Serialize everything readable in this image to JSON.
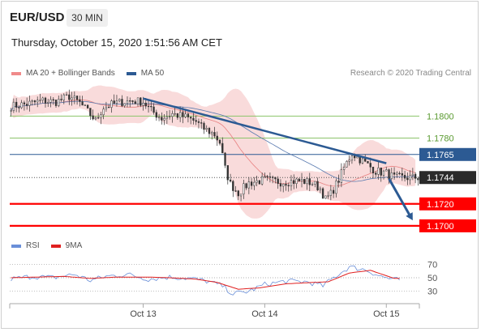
{
  "header": {
    "symbol": "EUR/USD",
    "timeframe": "30 MIN",
    "datetime": "Thursday, October 15, 2020 1:51:56 AM CET",
    "credit": "Research © 2020 Trading Central"
  },
  "legend": {
    "main": [
      {
        "label": "MA 20 + Bollinger Bands",
        "color": "#f08a8a"
      },
      {
        "label": "MA 50",
        "color": "#2c5a93"
      }
    ],
    "rsi": [
      {
        "label": "RSI",
        "color": "#6a8fd8"
      },
      {
        "label": "9MA",
        "color": "#e02020"
      }
    ]
  },
  "colors": {
    "up_candle": "#444444",
    "down_candle": "#444444",
    "support": "#ff0000",
    "pivot": "#2c5a93",
    "resistance": "#8cc46a",
    "trendline": "#2c5a93",
    "bollinger_fill": "#f8d5d5",
    "ma20": "#e88080",
    "ma50": "#5a7bb0",
    "rsi": "#6a8fd8",
    "rsi_ma": "#e02020",
    "current_price_bg": "#2a2a2a"
  },
  "chart_data": [
    {
      "type": "candlestick",
      "title": "EUR/USD 30 MIN",
      "ylim": [
        1.1694,
        1.1832
      ],
      "x_ticks": [
        "Oct 13",
        "Oct 14",
        "Oct 15"
      ],
      "x_tick_index": [
        50,
        96,
        142
      ],
      "n_bars": 155,
      "levels": [
        {
          "value": 1.18,
          "label": "1.1800",
          "kind": "resistance"
        },
        {
          "value": 1.178,
          "label": "1.1780",
          "kind": "resistance"
        },
        {
          "value": 1.1765,
          "label": "1.1765",
          "kind": "pivot"
        },
        {
          "value": 1.1744,
          "label": "1.1744",
          "kind": "current"
        },
        {
          "value": 1.172,
          "label": "1.1720",
          "kind": "support"
        },
        {
          "value": 1.17,
          "label": "1.1700",
          "kind": "support"
        }
      ],
      "trendline": [
        {
          "bar": 50,
          "price": 1.1816
        },
        {
          "bar": 142,
          "price": 1.1757
        }
      ],
      "forecast_arrow": [
        {
          "bar": 143,
          "price": 1.1743
        },
        {
          "bar": 152,
          "price": 1.1705
        }
      ],
      "price_path": [
        [
          0,
          1.1809
        ],
        [
          6,
          1.1811
        ],
        [
          12,
          1.1814
        ],
        [
          17,
          1.1813
        ],
        [
          22,
          1.1818
        ],
        [
          26,
          1.1812
        ],
        [
          29,
          1.1804
        ],
        [
          32,
          1.1796
        ],
        [
          35,
          1.1808
        ],
        [
          40,
          1.1812
        ],
        [
          45,
          1.1814
        ],
        [
          50,
          1.1813
        ],
        [
          53,
          1.1805
        ],
        [
          57,
          1.1798
        ],
        [
          61,
          1.1802
        ],
        [
          66,
          1.1799
        ],
        [
          70,
          1.1795
        ],
        [
          72,
          1.179
        ],
        [
          75,
          1.1786
        ],
        [
          77,
          1.1783
        ],
        [
          79,
          1.1776
        ],
        [
          81,
          1.1752
        ],
        [
          83,
          1.1738
        ],
        [
          86,
          1.173
        ],
        [
          90,
          1.1739
        ],
        [
          96,
          1.1742
        ],
        [
          102,
          1.174
        ],
        [
          110,
          1.1741
        ],
        [
          114,
          1.1739
        ],
        [
          117,
          1.1734
        ],
        [
          119,
          1.1724
        ],
        [
          121,
          1.1729
        ],
        [
          124,
          1.1742
        ],
        [
          126,
          1.1753
        ],
        [
          129,
          1.1766
        ],
        [
          133,
          1.1759
        ],
        [
          138,
          1.175
        ],
        [
          142,
          1.1748
        ],
        [
          145,
          1.1744
        ]
      ]
    },
    {
      "type": "line",
      "title": "RSI",
      "ylim": [
        20,
        80
      ],
      "levels": [
        70,
        50,
        30
      ],
      "series": [
        {
          "name": "RSI",
          "points": [
            [
              0,
              48
            ],
            [
              8,
              52
            ],
            [
              16,
              50
            ],
            [
              24,
              55
            ],
            [
              30,
              46
            ],
            [
              36,
              52
            ],
            [
              44,
              55
            ],
            [
              52,
              48
            ],
            [
              60,
              51
            ],
            [
              68,
              49
            ],
            [
              74,
              45
            ],
            [
              80,
              38
            ],
            [
              84,
              26
            ],
            [
              90,
              30
            ],
            [
              96,
              40
            ],
            [
              104,
              45
            ],
            [
              112,
              44
            ],
            [
              118,
              38
            ],
            [
              122,
              50
            ],
            [
              128,
              66
            ],
            [
              134,
              62
            ],
            [
              140,
              52
            ],
            [
              145,
              47
            ]
          ]
        },
        {
          "name": "9MA",
          "points": [
            [
              0,
              50
            ],
            [
              10,
              51
            ],
            [
              20,
              52
            ],
            [
              30,
              49
            ],
            [
              40,
              51
            ],
            [
              52,
              51
            ],
            [
              60,
              50
            ],
            [
              70,
              48
            ],
            [
              78,
              43
            ],
            [
              86,
              33
            ],
            [
              94,
              35
            ],
            [
              104,
              41
            ],
            [
              114,
              43
            ],
            [
              120,
              44
            ],
            [
              128,
              57
            ],
            [
              136,
              61
            ],
            [
              145,
              49
            ]
          ]
        }
      ]
    }
  ]
}
